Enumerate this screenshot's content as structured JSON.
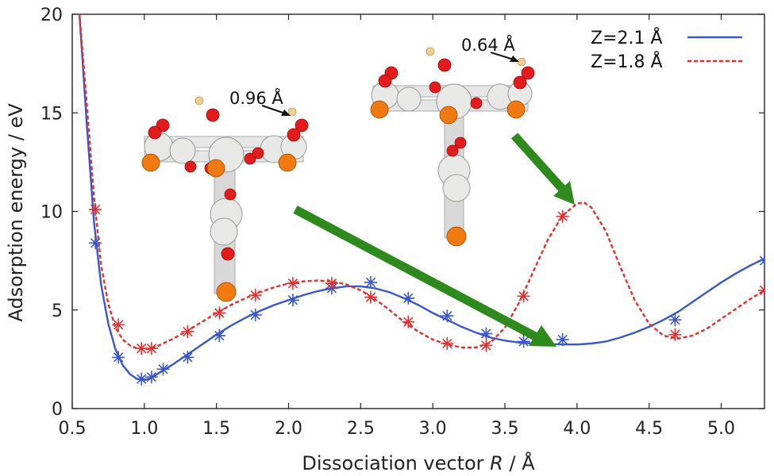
{
  "chart_data": {
    "type": "line",
    "title": "",
    "xlabel_pre": "Dissociation vector ",
    "xlabel_var": "R",
    "xlabel_post": " / Å",
    "ylabel": "Adsorption energy / eV",
    "xlim": [
      0.5,
      5.3
    ],
    "ylim": [
      0,
      20
    ],
    "x_ticks": [
      "0.5",
      "1.0",
      "1.5",
      "2.0",
      "2.5",
      "3.0",
      "3.5",
      "4.0",
      "4.5",
      "5.0"
    ],
    "y_ticks": [
      "0",
      "5",
      "10",
      "15",
      "20"
    ],
    "legend_position": "top-right",
    "series": [
      {
        "name": "Z=2.1 Å",
        "color": "#3a57c8",
        "style": "solid",
        "curve": [
          [
            0.55,
            20
          ],
          [
            0.6,
            14.5
          ],
          [
            0.65,
            9.5
          ],
          [
            0.7,
            6.3
          ],
          [
            0.75,
            4.3
          ],
          [
            0.8,
            3.0
          ],
          [
            0.85,
            2.2
          ],
          [
            0.9,
            1.75
          ],
          [
            0.95,
            1.5
          ],
          [
            1.0,
            1.45
          ],
          [
            1.05,
            1.55
          ],
          [
            1.1,
            1.8
          ],
          [
            1.2,
            2.25
          ],
          [
            1.3,
            2.75
          ],
          [
            1.4,
            3.25
          ],
          [
            1.5,
            3.75
          ],
          [
            1.6,
            4.2
          ],
          [
            1.7,
            4.6
          ],
          [
            1.8,
            4.95
          ],
          [
            1.9,
            5.25
          ],
          [
            2.0,
            5.5
          ],
          [
            2.1,
            5.75
          ],
          [
            2.2,
            5.95
          ],
          [
            2.3,
            6.1
          ],
          [
            2.4,
            6.2
          ],
          [
            2.5,
            6.2
          ],
          [
            2.6,
            6.1
          ],
          [
            2.7,
            5.9
          ],
          [
            2.8,
            5.6
          ],
          [
            2.9,
            5.25
          ],
          [
            3.0,
            4.85
          ],
          [
            3.1,
            4.5
          ],
          [
            3.2,
            4.15
          ],
          [
            3.3,
            3.85
          ],
          [
            3.4,
            3.6
          ],
          [
            3.5,
            3.45
          ],
          [
            3.6,
            3.35
          ],
          [
            3.7,
            3.3
          ],
          [
            3.8,
            3.27
          ],
          [
            3.9,
            3.25
          ],
          [
            4.0,
            3.25
          ],
          [
            4.1,
            3.3
          ],
          [
            4.2,
            3.4
          ],
          [
            4.3,
            3.6
          ],
          [
            4.4,
            3.85
          ],
          [
            4.5,
            4.15
          ],
          [
            4.6,
            4.5
          ],
          [
            4.7,
            4.9
          ],
          [
            4.8,
            5.4
          ],
          [
            4.9,
            5.9
          ],
          [
            5.0,
            6.4
          ],
          [
            5.1,
            6.85
          ],
          [
            5.2,
            7.25
          ],
          [
            5.3,
            7.6
          ]
        ],
        "points": [
          [
            0.66,
            8.4
          ],
          [
            0.82,
            2.6
          ],
          [
            0.98,
            1.5
          ],
          [
            1.05,
            1.6
          ],
          [
            1.13,
            2.0
          ],
          [
            1.3,
            2.6
          ],
          [
            1.52,
            3.7
          ],
          [
            1.77,
            4.75
          ],
          [
            2.03,
            5.5
          ],
          [
            2.3,
            6.1
          ],
          [
            2.57,
            6.4
          ],
          [
            2.83,
            5.6
          ],
          [
            3.1,
            4.7
          ],
          [
            3.37,
            3.8
          ],
          [
            3.63,
            3.4
          ],
          [
            3.9,
            3.5
          ],
          [
            4.68,
            4.5
          ],
          [
            5.3,
            7.5
          ]
        ]
      },
      {
        "name": "Z=1.8 Å",
        "color": "#e03030",
        "style": "dashed",
        "curve": [
          [
            0.55,
            20
          ],
          [
            0.6,
            15.5
          ],
          [
            0.65,
            10.8
          ],
          [
            0.7,
            7.3
          ],
          [
            0.75,
            5.3
          ],
          [
            0.8,
            4.1
          ],
          [
            0.85,
            3.5
          ],
          [
            0.9,
            3.2
          ],
          [
            0.95,
            3.05
          ],
          [
            1.0,
            3.0
          ],
          [
            1.05,
            3.05
          ],
          [
            1.1,
            3.2
          ],
          [
            1.2,
            3.55
          ],
          [
            1.3,
            3.95
          ],
          [
            1.4,
            4.4
          ],
          [
            1.5,
            4.85
          ],
          [
            1.6,
            5.25
          ],
          [
            1.7,
            5.6
          ],
          [
            1.8,
            5.9
          ],
          [
            1.9,
            6.15
          ],
          [
            2.0,
            6.35
          ],
          [
            2.1,
            6.45
          ],
          [
            2.2,
            6.5
          ],
          [
            2.3,
            6.45
          ],
          [
            2.4,
            6.3
          ],
          [
            2.5,
            6.0
          ],
          [
            2.6,
            5.55
          ],
          [
            2.7,
            5.0
          ],
          [
            2.8,
            4.4
          ],
          [
            2.9,
            3.9
          ],
          [
            3.0,
            3.5
          ],
          [
            3.1,
            3.25
          ],
          [
            3.2,
            3.1
          ],
          [
            3.3,
            3.1
          ],
          [
            3.4,
            3.35
          ],
          [
            3.5,
            4.1
          ],
          [
            3.6,
            5.4
          ],
          [
            3.7,
            7.0
          ],
          [
            3.8,
            8.6
          ],
          [
            3.9,
            9.8
          ],
          [
            4.0,
            10.4
          ],
          [
            4.05,
            10.45
          ],
          [
            4.1,
            10.2
          ],
          [
            4.2,
            9.0
          ],
          [
            4.3,
            7.2
          ],
          [
            4.4,
            5.5
          ],
          [
            4.5,
            4.3
          ],
          [
            4.6,
            3.7
          ],
          [
            4.7,
            3.55
          ],
          [
            4.8,
            3.7
          ],
          [
            4.9,
            4.05
          ],
          [
            5.0,
            4.55
          ],
          [
            5.1,
            5.05
          ],
          [
            5.2,
            5.55
          ],
          [
            5.3,
            6.0
          ]
        ],
        "points": [
          [
            0.66,
            10.1
          ],
          [
            0.82,
            4.25
          ],
          [
            0.98,
            3.05
          ],
          [
            1.05,
            3.05
          ],
          [
            1.3,
            3.9
          ],
          [
            1.52,
            4.85
          ],
          [
            1.77,
            5.75
          ],
          [
            2.03,
            6.35
          ],
          [
            2.3,
            6.35
          ],
          [
            2.57,
            5.65
          ],
          [
            2.83,
            4.4
          ],
          [
            3.1,
            3.3
          ],
          [
            3.37,
            3.2
          ],
          [
            3.63,
            5.7
          ],
          [
            3.9,
            9.75
          ],
          [
            4.68,
            3.75
          ],
          [
            5.3,
            6.0
          ]
        ]
      }
    ],
    "annotations": [
      {
        "text": "0.96 Å"
      },
      {
        "text": "0.64 Å"
      }
    ],
    "arrow_color": "#2f8a1e"
  }
}
